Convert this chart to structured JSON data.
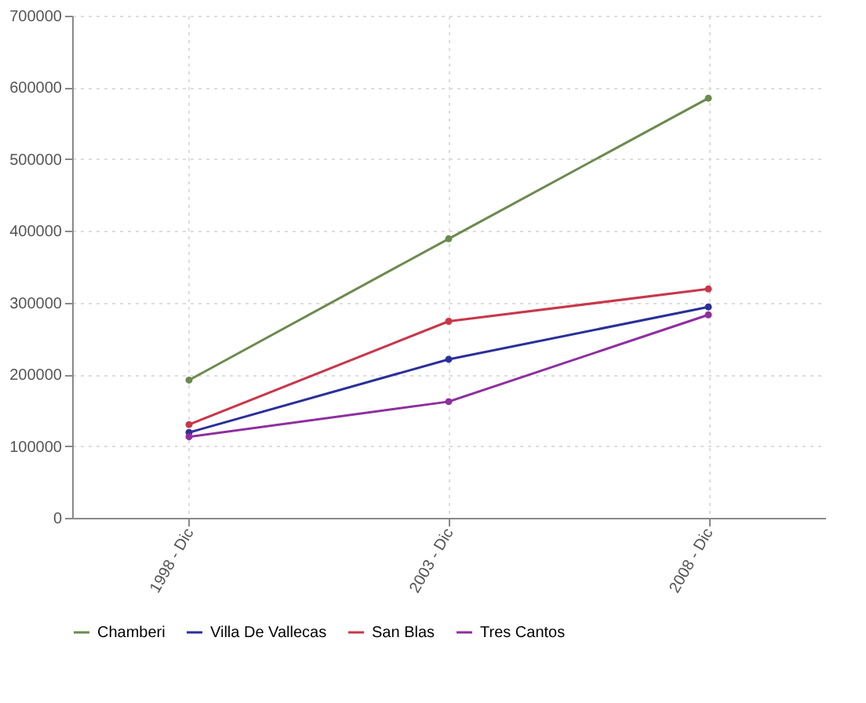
{
  "chart_data": {
    "type": "line",
    "categories": [
      "1998 - Dic",
      "2003 - Dic",
      "2008 - Dic"
    ],
    "series": [
      {
        "name": "Chamberi",
        "color": "#6b8a4e",
        "values": [
          192000,
          389000,
          585000
        ]
      },
      {
        "name": "Villa De Vallecas",
        "color": "#2b2f9a",
        "values": [
          119000,
          221000,
          294000
        ]
      },
      {
        "name": "San Blas",
        "color": "#c8374a",
        "values": [
          130000,
          274000,
          319000
        ]
      },
      {
        "name": "Tres Cantos",
        "color": "#8e2f9e",
        "values": [
          113000,
          162000,
          283000
        ]
      }
    ],
    "ylim": [
      0,
      700000
    ],
    "yticks": [
      0,
      100000,
      200000,
      300000,
      400000,
      500000,
      600000,
      700000
    ],
    "grid": true,
    "legend": "bottom",
    "marker": "circle",
    "line_style": "solid"
  }
}
